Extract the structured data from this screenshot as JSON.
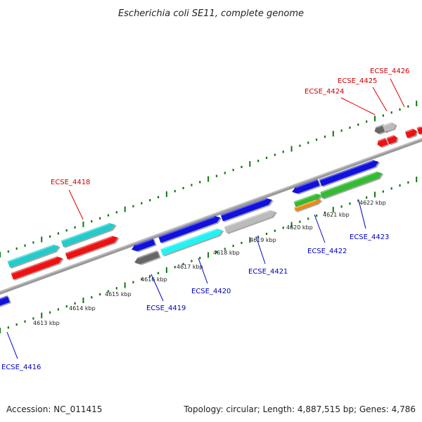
{
  "title": "Escherichia coli SE11, complete genome",
  "footer": {
    "accession": "Accession: NC_011415",
    "summary": "Topology: circular; Length: 4,887,515 bp; Genes: 4,786"
  },
  "colors": {
    "dark_blue": "#1111dd",
    "cyan": "#22cccc",
    "light_cyan": "#22f2f2",
    "red": "#ee1111",
    "grey": "#666666",
    "light_grey": "#bbbbbb",
    "green": "#33bb33",
    "orange": "#ee8811",
    "backbone": "#888888",
    "tick_green": "#117711",
    "label_red": "#cc0000",
    "label_blue": "#0000bb"
  },
  "ticks": [
    "4613 kbp",
    "4614 kbp",
    "4615 kbp",
    "4616 kbp",
    "4617 kbp",
    "4618 kbp",
    "4619 kbp",
    "4620 kbp",
    "4621 kbp",
    "4622 kbp"
  ],
  "gene_labels": [
    {
      "text": "ECSE_4426",
      "strand": "top"
    },
    {
      "text": "ECSE_4425",
      "strand": "top"
    },
    {
      "text": "ECSE_4424",
      "strand": "top"
    },
    {
      "text": "ECSE_4418",
      "strand": "top"
    },
    {
      "text": "ECSE_4422",
      "strand": "bottom"
    },
    {
      "text": "ECSE_4423",
      "strand": "bottom"
    },
    {
      "text": "ECSE_4421",
      "strand": "bottom"
    },
    {
      "text": "ECSE_4420",
      "strand": "bottom"
    },
    {
      "text": "ECSE_4419",
      "strand": "bottom"
    },
    {
      "text": "ECSE_4416",
      "strand": "bottom"
    }
  ]
}
